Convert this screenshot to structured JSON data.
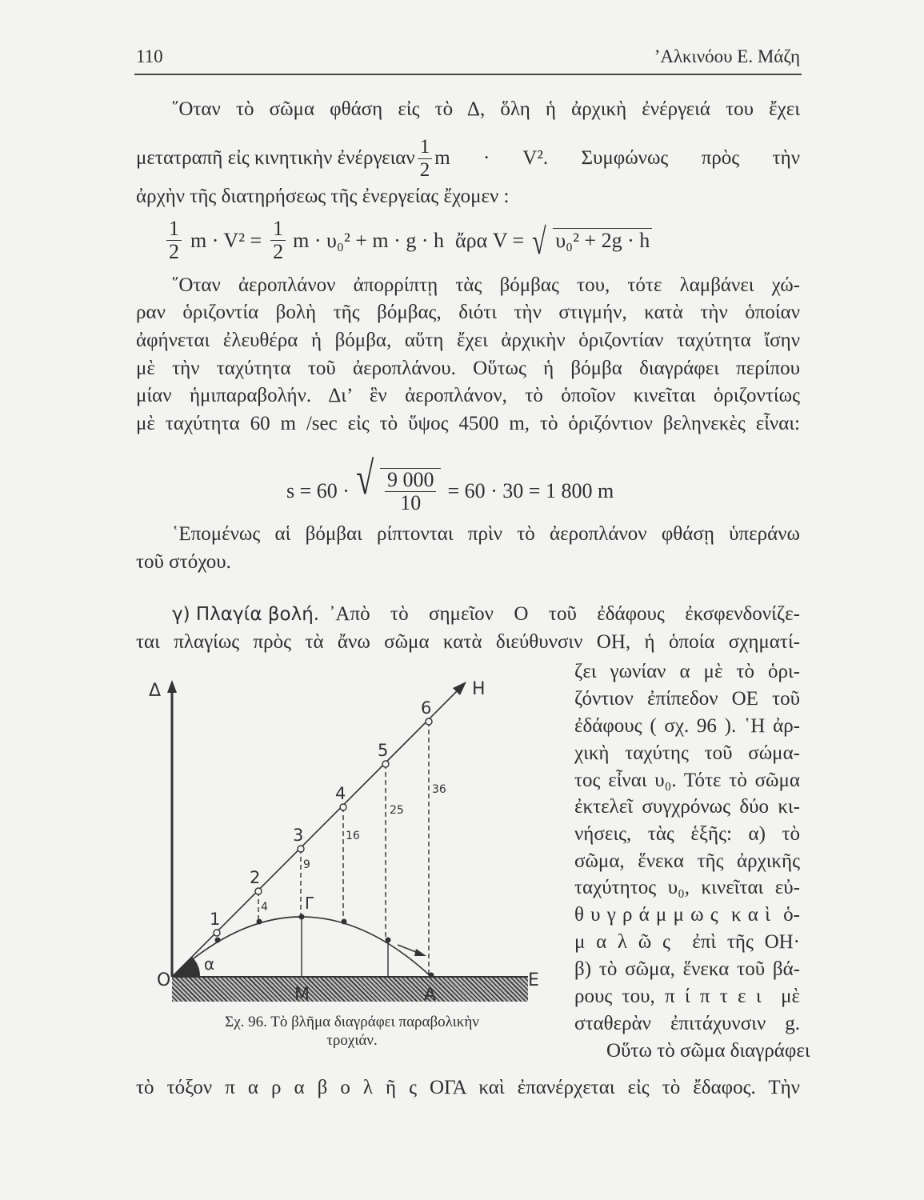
{
  "header": {
    "page_number": "110",
    "running_title": "’Αλκινόου Ε. Μάζη"
  },
  "para1": {
    "line1": "῞Οταν τὸ σῶμα φθάση εἰς τὸ Δ, ὅλη ἡ ἀρχικὴ ἐνέργειά του ἔχει",
    "line2_a": "μετατραπῆ εἰς κινητικὴν ἐνέργειαν",
    "line2_frac_num": "1",
    "line2_frac_den": "2",
    "line2_b": "m · V². Συμφώνως πρὸς τὴν",
    "line3": "ἀρχὴν τῆς διατηρήσεως τῆς ἐνεργείας ἔχομεν :"
  },
  "formula1": {
    "frac_num": "1",
    "frac_den": "2",
    "lhs": "m · V² =",
    "rhs": "m · υ₀² + m · g · h",
    "ara": "ἄρα V =",
    "radical": "√",
    "sqrt_content": "υ₀² + 2g · h"
  },
  "para2": {
    "lines": [
      "῞Οταν ἀεροπλάνον ἀπορρίπτῃ τὰς βόμβας του, τότε λαμβάνει χώ-",
      "ραν ὁριζοντία βολὴ τῆς βόμβας, διότι τὴν στιγμήν, κατὰ τὴν ὁποίαν",
      "ἀφήνεται ἐλευθέρα ἡ βόμβα, αὕτη ἔχει ἀρχικὴν ὁριζοντίαν ταχύτητα ἴσην",
      "μὲ τὴν ταχύτητα τοῦ ἀεροπλάνου. Οὕτως ἡ βόμβα διαγράφει περίπου",
      "μίαν ἡμιπαραβολήν. Δι’ ἓν ἀεροπλάνον, τὸ ὁποῖον κινεῖται ὁριζοντίως",
      "μὲ ταχύτητα 60 m /sec εἰς τὸ ὕψος 4500 m, τὸ ὁριζόντιον βεληνεκὲς εἶναι:"
    ]
  },
  "formula2": {
    "lhs": "s = 60 ·",
    "radical": "√",
    "frac_num": "9 000",
    "frac_den": "10",
    "rhs": "= 60 · 30 = 1 800 m"
  },
  "para3": {
    "line1": "῾Επομένως αἱ βόμβαι ρίπτονται πρὶν τὸ ἀεροπλάνον φθάσῃ ὑπεράνω",
    "line2": "τοῦ στόχου."
  },
  "section": {
    "heading": "γ) Πλαγία βολή.",
    "line1_rest": "᾿Απὸ τὸ σημεῖον Ο τοῦ ἐδάφους ἐκσφενδονίζε-",
    "line2": "ται πλαγίως πρὸς τὰ ἄνω σῶμα κατὰ διεύθυνσιν ΟΗ, ἡ ὁποία σχηματί-",
    "right_column": [
      "ζει γωνίαν α μὲ τὸ ὁρι-",
      "ζόντιον ἐπίπεδον ΟΕ τοῦ",
      "ἐδάφους ( σχ. 96 ). ῾Η ἀρ-",
      "χικὴ ταχύτης τοῦ σώμα-",
      "τος εἶναι υ₀. Τότε τὸ σῶμα",
      "ἐκτελεῖ συγχρόνως δύο κι-",
      "νήσεις, τὰς ἑξῆς: α) τὸ",
      "σῶμα, ἕνεκα τῆς ἀρχικῆς",
      "ταχύτητος υ₀, κινεῖται εὐ-",
      "θ υ γ ρ ά μ μ ω ς  κ α ὶ  ὁ-",
      "μ α λ ῶ ς  ἐπὶ τῆς ΟΗ·",
      "β) τὸ σῶμα, ἕνεκα τοῦ βά-",
      "ρους του, π ί π τ ε ι  μὲ",
      "σταθερὰν ἐπιτάχυνσιν g.",
      "Οὕτω τὸ σῶμα διαγράφει"
    ],
    "last_line": "τὸ τόξον π α ρ α β ο λ ῆ ς ΟΓΑ καὶ ἐπανέρχεται εἰς τὸ ἔδαφος. Τὴν"
  },
  "figure": {
    "labels": {
      "delta": "Δ",
      "H": "H",
      "O": "O",
      "E": "E",
      "M": "M",
      "A": "A",
      "gamma": "Γ",
      "alpha": "α",
      "points": [
        "1",
        "2",
        "3",
        "4",
        "5",
        "6"
      ],
      "drops": [
        "4",
        "9",
        "16",
        "25",
        "36"
      ]
    },
    "caption_line1": "Σχ. 96.  Τὸ βλῆμα διαγράφει παραβολικὴν",
    "caption_line2": "τροχιάν."
  }
}
